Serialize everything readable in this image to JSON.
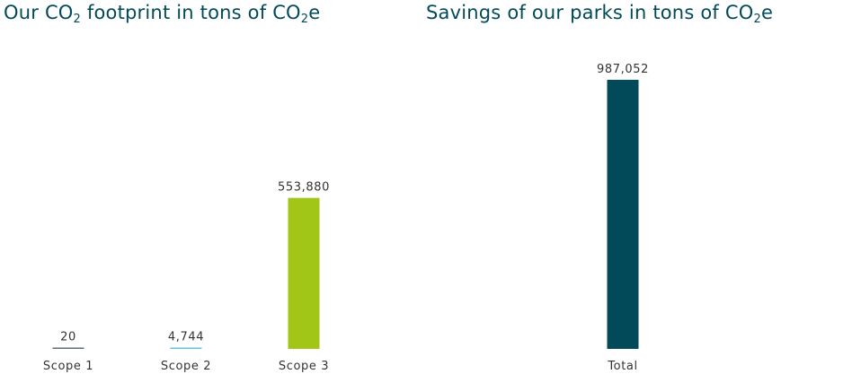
{
  "chart_data": [
    {
      "type": "bar",
      "title": {
        "prefix": "Our CO",
        "subscript": "2",
        "suffix": " footprint in tons of CO",
        "subscript2": "2",
        "suffix2": "e"
      },
      "categories": [
        "Scope 1",
        "Scope 2",
        "Scope 3"
      ],
      "values": [
        20,
        4744,
        553880
      ],
      "value_labels": [
        "20",
        "4,744",
        "553,880"
      ],
      "colors": [
        "#5f6f78",
        "#5bc4e0",
        "#a2c617"
      ],
      "ylim": [
        0,
        987052
      ],
      "grid": false
    },
    {
      "type": "bar",
      "title": {
        "prefix": "Savings of our parks in tons of CO",
        "subscript": "2",
        "suffix": "e"
      },
      "categories": [
        "Total"
      ],
      "values": [
        987052
      ],
      "value_labels": [
        "987,052"
      ],
      "colors": [
        "#024a59"
      ],
      "ylim": [
        0,
        987052
      ],
      "grid": false
    }
  ]
}
